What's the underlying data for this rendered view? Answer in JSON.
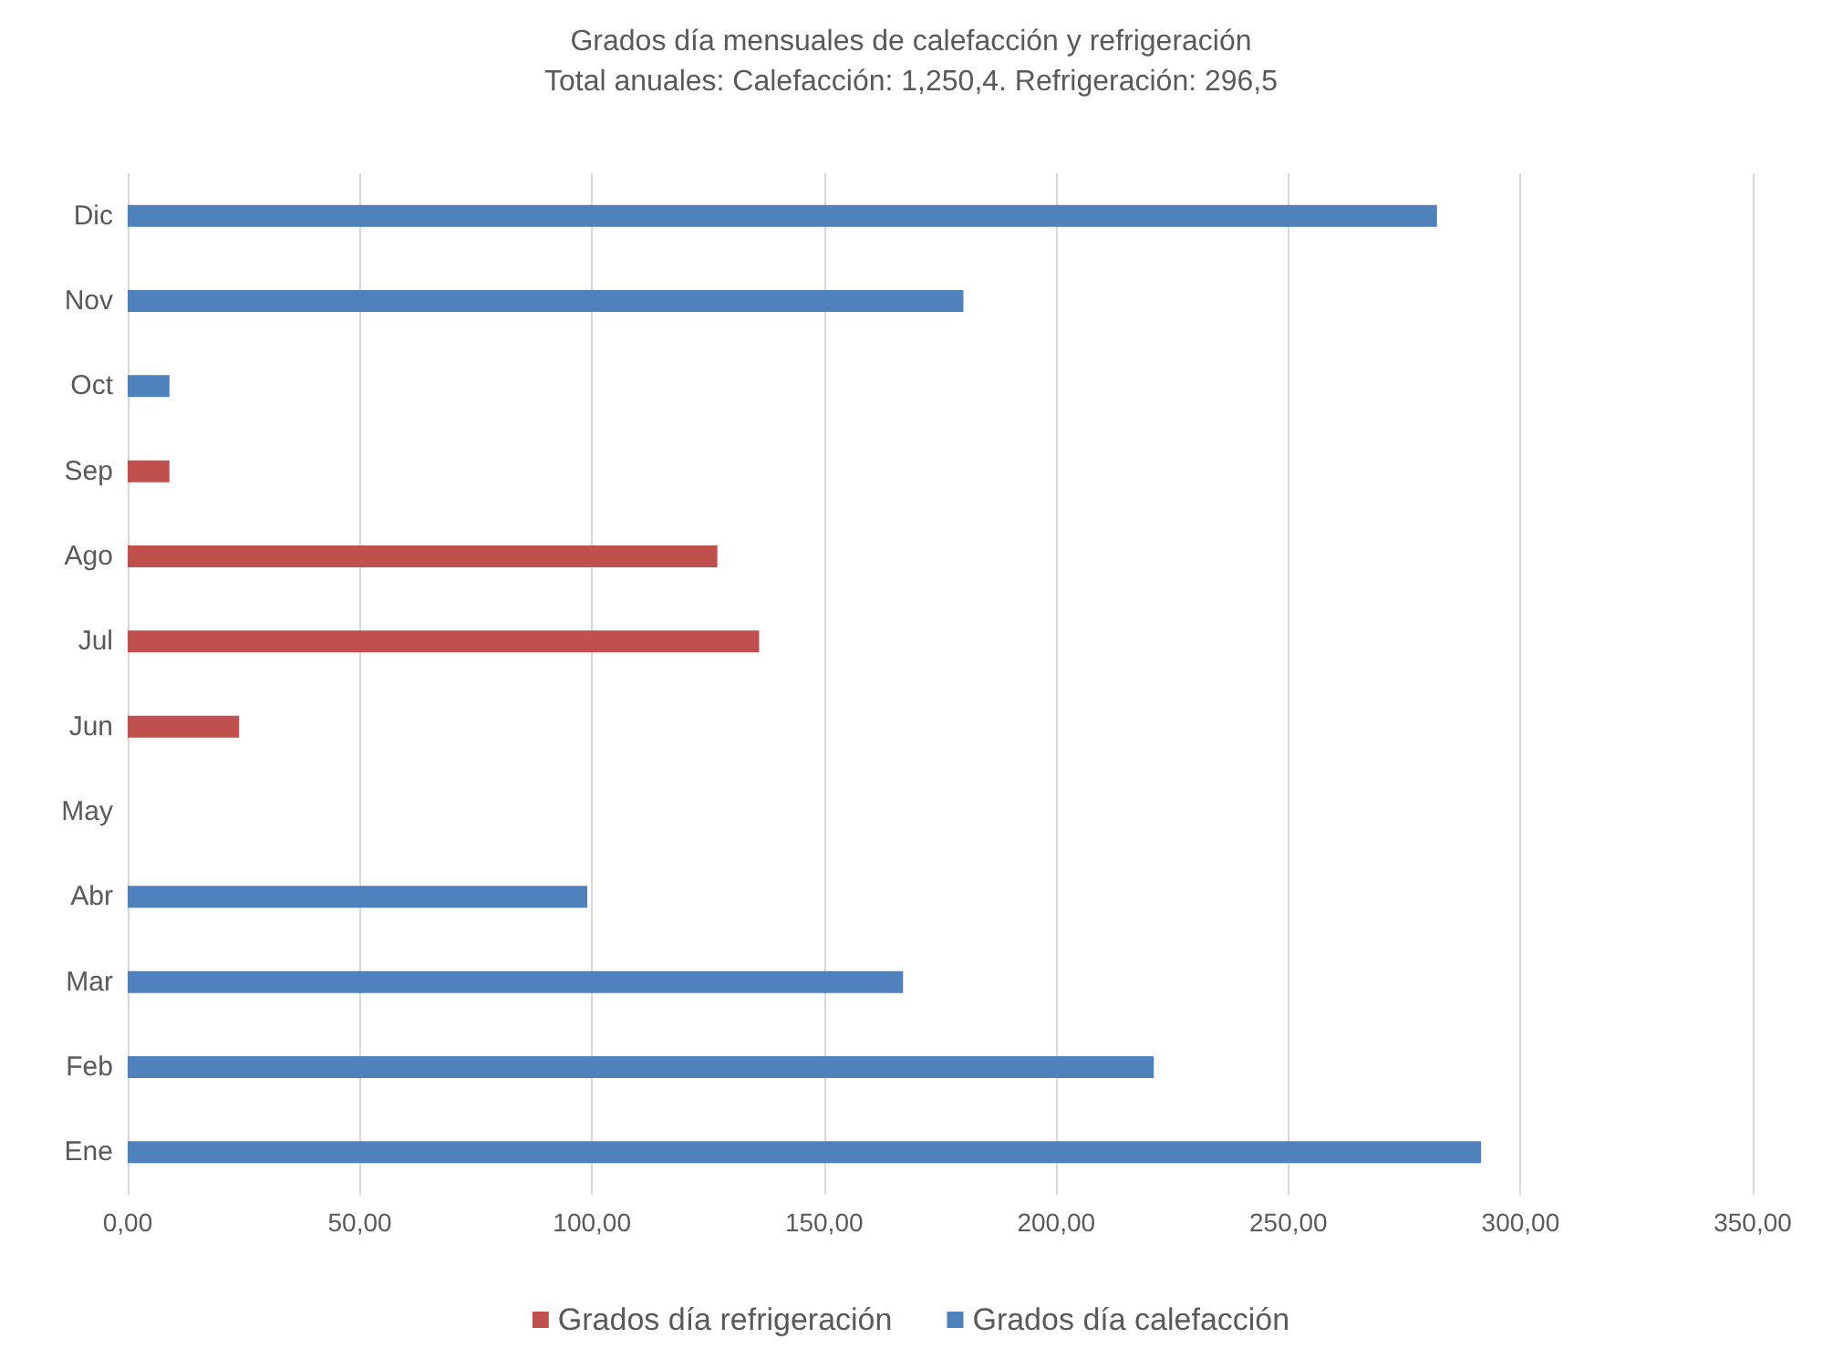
{
  "chart_data": {
    "type": "bar",
    "orientation": "horizontal",
    "title": "Grados día mensuales de calefacción y refrigeración",
    "subtitle": "Total anuales: Calefacción: 1,250,4. Refrigeración: 296,5",
    "categories": [
      "Dic",
      "Nov",
      "Oct",
      "Sep",
      "Ago",
      "Jul",
      "Jun",
      "May",
      "Abr",
      "Mar",
      "Feb",
      "Ene"
    ],
    "series": [
      {
        "name": "Grados día refrigeración",
        "color": "#c0504d",
        "values": [
          null,
          null,
          null,
          9,
          127,
          136,
          24,
          null,
          null,
          null,
          null,
          null
        ]
      },
      {
        "name": "Grados día calefacción",
        "color": "#4f81bd",
        "values": [
          282,
          180,
          9,
          null,
          null,
          null,
          null,
          null,
          99,
          167,
          221,
          291.5
        ]
      }
    ],
    "xlim": [
      0,
      350
    ],
    "xticks": [
      {
        "value": 0,
        "label": "0,00"
      },
      {
        "value": 50,
        "label": "50,00"
      },
      {
        "value": 100,
        "label": "100,00"
      },
      {
        "value": 150,
        "label": "150,00"
      },
      {
        "value": 200,
        "label": "200,00"
      },
      {
        "value": 250,
        "label": "250,00"
      },
      {
        "value": 300,
        "label": "300,00"
      },
      {
        "value": 350,
        "label": "350,00"
      }
    ],
    "grid": "x",
    "legend": "bottom"
  }
}
